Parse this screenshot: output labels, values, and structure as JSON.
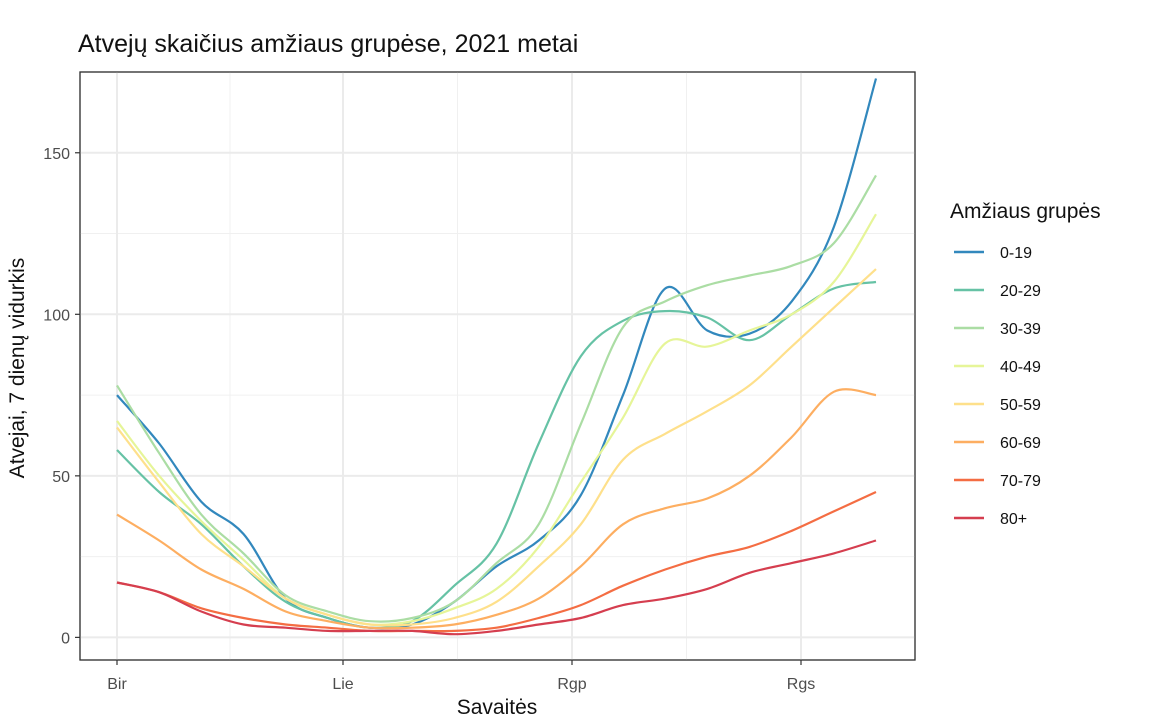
{
  "chart_data": {
    "type": "line",
    "title": "Atvejų  skaičius amžiaus grupėse, 2021 metai",
    "xlabel": "Savaitės",
    "ylabel": "Atvejai, 7 dienų vidurkis",
    "x_ticks": [
      "Bir",
      "Lie",
      "Rgp",
      "Rgs"
    ],
    "y_ticks": [
      "0",
      "50",
      "100",
      "150"
    ],
    "ylim": [
      -7,
      175
    ],
    "grid": true,
    "legend_position": "right",
    "legend_title": "Amžiaus grupės",
    "x": [
      "06-01",
      "06-08",
      "06-15",
      "06-22",
      "06-29",
      "07-06",
      "07-13",
      "07-20",
      "07-27",
      "08-03",
      "08-10",
      "08-17",
      "08-24",
      "08-31",
      "09-07",
      "09-14",
      "09-21",
      "09-28",
      "10-03"
    ],
    "series": [
      {
        "name": "0-19",
        "color": "#3288bd",
        "values": [
          75,
          60,
          42,
          32,
          12,
          6,
          3,
          4,
          11,
          22,
          30,
          44,
          75,
          108,
          95,
          94,
          104,
          127,
          173
        ]
      },
      {
        "name": "20-29",
        "color": "#66c2a5",
        "values": [
          58,
          45,
          35,
          22,
          11,
          6,
          3,
          5,
          16,
          29,
          60,
          87,
          98,
          101,
          99,
          92,
          100,
          108,
          110
        ]
      },
      {
        "name": "30-39",
        "color": "#abdda4",
        "values": [
          78,
          57,
          38,
          26,
          13,
          8,
          5,
          6,
          11,
          23,
          35,
          66,
          96,
          104,
          109,
          112,
          115,
          122,
          143
        ]
      },
      {
        "name": "40-49",
        "color": "#e6f598",
        "values": [
          67,
          50,
          36,
          24,
          12,
          7,
          4,
          5,
          9,
          15,
          28,
          48,
          68,
          91,
          90,
          95,
          100,
          110,
          131
        ]
      },
      {
        "name": "50-59",
        "color": "#fee08b",
        "values": [
          65,
          48,
          32,
          22,
          12,
          7,
          4,
          4,
          6,
          11,
          22,
          35,
          55,
          63,
          70,
          78,
          90,
          102,
          114
        ]
      },
      {
        "name": "60-69",
        "color": "#fdae61",
        "values": [
          38,
          30,
          21,
          15,
          8,
          5,
          3,
          3,
          4,
          7,
          12,
          22,
          35,
          40,
          43,
          50,
          62,
          76,
          75
        ]
      },
      {
        "name": "70-79",
        "color": "#f46d43",
        "values": [
          17,
          14,
          9,
          6,
          4,
          3,
          2,
          2,
          2,
          3,
          6,
          10,
          16,
          21,
          25,
          28,
          33,
          39,
          45
        ]
      },
      {
        "name": "80+",
        "color": "#d53e4f",
        "values": [
          17,
          14,
          8,
          4,
          3,
          2,
          2,
          2,
          1,
          2,
          4,
          6,
          10,
          12,
          15,
          20,
          23,
          26,
          30
        ]
      }
    ]
  }
}
